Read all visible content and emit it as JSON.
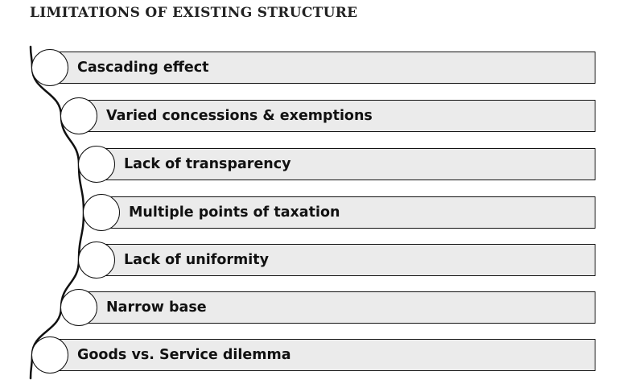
{
  "title": "LIMITATIONS OF EXISTING STRUCTURE",
  "items": [
    {
      "label": "Cascading effect"
    },
    {
      "label": "Varied concessions & exemptions"
    },
    {
      "label": "Lack of transparency"
    },
    {
      "label": "Multiple points of taxation"
    },
    {
      "label": "Lack of uniformity"
    },
    {
      "label": "Narrow base"
    },
    {
      "label": "Goods vs. Service dilemma"
    }
  ],
  "colors": {
    "box_fill": "#ebebeb",
    "outline": "#111111",
    "bullet_fill": "#ffffff"
  }
}
